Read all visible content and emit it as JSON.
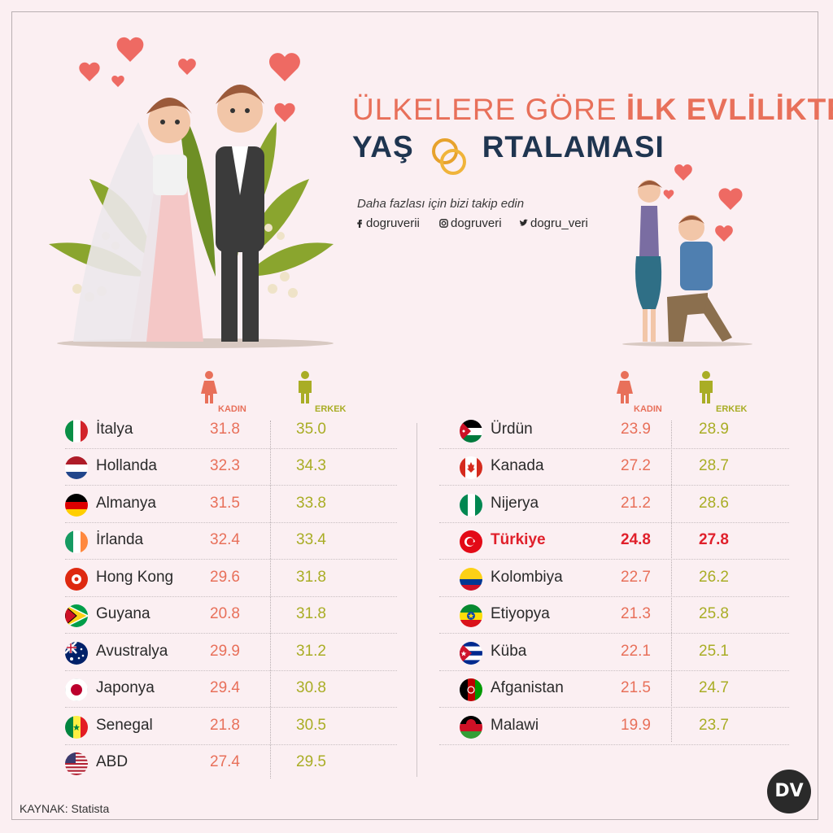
{
  "title": {
    "line1_normal": "ÜLKELERE GÖRE ",
    "line1_bold": "İLK EVLİLİKTE",
    "line2_part1": "YAŞ",
    "line2_part2": "RTALAMASI"
  },
  "follow": {
    "text": "Daha fazlası için bizi takip edin",
    "facebook": "dogruverii",
    "instagram": "dogruveri",
    "twitter": "dogru_veri"
  },
  "headers": {
    "female": "KADIN",
    "male": "ERKEK"
  },
  "left_table": [
    {
      "country": "İtalya",
      "female": "31.8",
      "male": "35.0",
      "flag": "italy"
    },
    {
      "country": "Hollanda",
      "female": "32.3",
      "male": "34.3",
      "flag": "netherlands"
    },
    {
      "country": "Almanya",
      "female": "31.5",
      "male": "33.8",
      "flag": "germany"
    },
    {
      "country": "İrlanda",
      "female": "32.4",
      "male": "33.4",
      "flag": "ireland"
    },
    {
      "country": "Hong Kong",
      "female": "29.6",
      "male": "31.8",
      "flag": "hongkong"
    },
    {
      "country": "Guyana",
      "female": "20.8",
      "male": "31.8",
      "flag": "guyana"
    },
    {
      "country": "Avustralya",
      "female": "29.9",
      "male": "31.2",
      "flag": "australia"
    },
    {
      "country": "Japonya",
      "female": "29.4",
      "male": "30.8",
      "flag": "japan"
    },
    {
      "country": "Senegal",
      "female": "21.8",
      "male": "30.5",
      "flag": "senegal"
    },
    {
      "country": "ABD",
      "female": "27.4",
      "male": "29.5",
      "flag": "usa"
    }
  ],
  "right_table": [
    {
      "country": "Ürdün",
      "female": "23.9",
      "male": "28.9",
      "flag": "jordan"
    },
    {
      "country": "Kanada",
      "female": "27.2",
      "male": "28.7",
      "flag": "canada"
    },
    {
      "country": "Nijerya",
      "female": "21.2",
      "male": "28.6",
      "flag": "nigeria"
    },
    {
      "country": "Türkiye",
      "female": "24.8",
      "male": "27.8",
      "flag": "turkey",
      "highlight": true
    },
    {
      "country": "Kolombiya",
      "female": "22.7",
      "male": "26.2",
      "flag": "colombia"
    },
    {
      "country": "Etiyopya",
      "female": "21.3",
      "male": "25.8",
      "flag": "ethiopia"
    },
    {
      "country": "Küba",
      "female": "22.1",
      "male": "25.1",
      "flag": "cuba"
    },
    {
      "country": "Afganistan",
      "female": "21.5",
      "male": "24.7",
      "flag": "afghanistan"
    },
    {
      "country": "Malawi",
      "female": "19.9",
      "male": "23.7",
      "flag": "malawi"
    }
  ],
  "source": "KAYNAK: Statista",
  "colors": {
    "female": "#e8705a",
    "male": "#a9ad25",
    "highlight": "#e0202b",
    "title_dark": "#1f3550"
  },
  "logo": "DV"
}
